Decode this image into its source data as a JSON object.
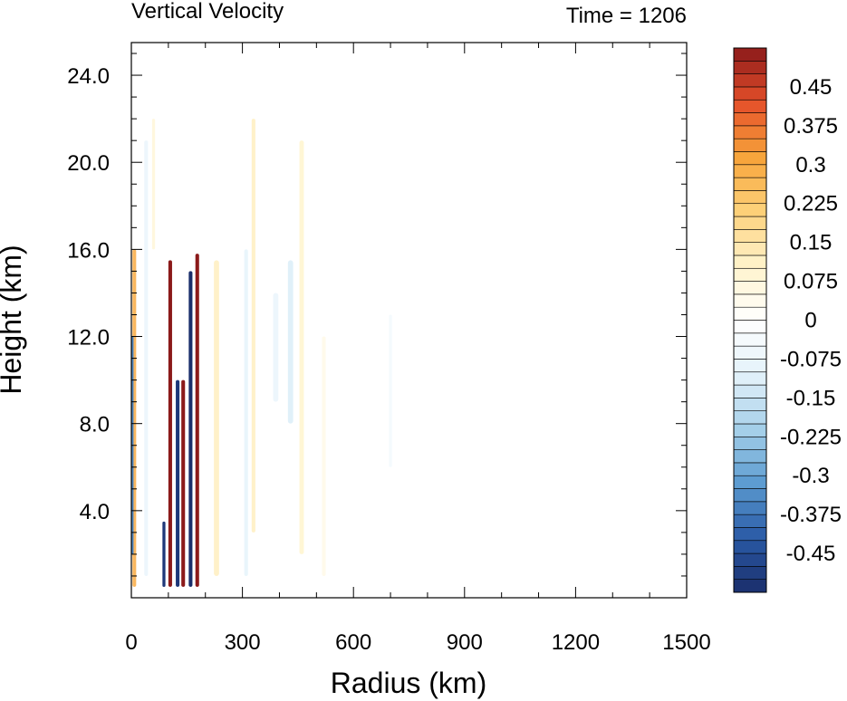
{
  "chart_data": {
    "type": "heatmap",
    "title_left": "Vertical Velocity",
    "title_right": "Time = 1206",
    "xlabel": "Radius (km)",
    "ylabel": "Height (km)",
    "xlim": [
      0,
      1500
    ],
    "ylim": [
      0,
      25.5
    ],
    "x_ticks": [
      {
        "value": 0,
        "label": "0"
      },
      {
        "value": 300,
        "label": "300"
      },
      {
        "value": 600,
        "label": "600"
      },
      {
        "value": 900,
        "label": "900"
      },
      {
        "value": 1200,
        "label": "1200"
      },
      {
        "value": 1500,
        "label": "1500"
      }
    ],
    "y_ticks": [
      {
        "value": 4,
        "label": "4.0"
      },
      {
        "value": 8,
        "label": "8.0"
      },
      {
        "value": 12,
        "label": "12.0"
      },
      {
        "value": 16,
        "label": "16.0"
      },
      {
        "value": 20,
        "label": "20.0"
      },
      {
        "value": 24,
        "label": "24.0"
      }
    ],
    "colorbar": {
      "levels": [
        -0.525,
        -0.5,
        -0.475,
        -0.45,
        -0.425,
        -0.4,
        -0.375,
        -0.35,
        -0.325,
        -0.3,
        -0.275,
        -0.25,
        -0.225,
        -0.2,
        -0.175,
        -0.15,
        -0.125,
        -0.1,
        -0.075,
        -0.05,
        -0.025,
        0,
        0.025,
        0.05,
        0.075,
        0.1,
        0.125,
        0.15,
        0.175,
        0.2,
        0.225,
        0.25,
        0.275,
        0.3,
        0.325,
        0.35,
        0.375,
        0.4,
        0.425,
        0.45,
        0.475,
        0.5,
        0.525
      ],
      "labels": [
        {
          "value": 0.45,
          "label": "0.45"
        },
        {
          "value": 0.375,
          "label": "0.375"
        },
        {
          "value": 0.3,
          "label": "0.3"
        },
        {
          "value": 0.225,
          "label": "0.225"
        },
        {
          "value": 0.15,
          "label": "0.15"
        },
        {
          "value": 0.075,
          "label": "0.075"
        },
        {
          "value": 0,
          "label": "0"
        },
        {
          "value": -0.075,
          "label": "-0.075"
        },
        {
          "value": -0.15,
          "label": "-0.15"
        },
        {
          "value": -0.225,
          "label": "-0.225"
        },
        {
          "value": -0.3,
          "label": "-0.3"
        },
        {
          "value": -0.375,
          "label": "-0.375"
        },
        {
          "value": -0.45,
          "label": "-0.45"
        }
      ],
      "color_stops": [
        "#1a2e6b",
        "#2a5aa6",
        "#5b9bd0",
        "#a6d0ea",
        "#e4f2fa",
        "#ffffff",
        "#fff3cc",
        "#fdd17a",
        "#f7a43a",
        "#e5502a",
        "#8b1a1a"
      ]
    },
    "features": [
      {
        "r": 178,
        "z0": 0.5,
        "z1": 15.8,
        "w": 10,
        "v": 0.55
      },
      {
        "r": 160,
        "z0": 0.5,
        "z1": 15.0,
        "w": 10,
        "v": -0.55
      },
      {
        "r": 140,
        "z0": 0.5,
        "z1": 10.0,
        "w": 10,
        "v": 0.55
      },
      {
        "r": 125,
        "z0": 0.5,
        "z1": 10.0,
        "w": 10,
        "v": -0.5
      },
      {
        "r": 105,
        "z0": 0.5,
        "z1": 15.5,
        "w": 10,
        "v": 0.55
      },
      {
        "r": 88,
        "z0": 0.5,
        "z1": 3.5,
        "w": 8,
        "v": -0.5
      },
      {
        "r": 8,
        "z0": 0.5,
        "z1": 16.0,
        "w": 10,
        "v": 0.3
      },
      {
        "r": 3,
        "z0": 2.0,
        "z1": 12.0,
        "w": 6,
        "v": -0.35
      },
      {
        "r": 230,
        "z0": 1.0,
        "z1": 15.5,
        "w": 14,
        "v": 0.12
      },
      {
        "r": 330,
        "z0": 3.0,
        "z1": 22.0,
        "w": 10,
        "v": 0.12
      },
      {
        "r": 310,
        "z0": 1.0,
        "z1": 16.0,
        "w": 10,
        "v": -0.1
      },
      {
        "r": 460,
        "z0": 2.0,
        "z1": 21.0,
        "w": 12,
        "v": 0.1
      },
      {
        "r": 430,
        "z0": 8.0,
        "z1": 15.5,
        "w": 14,
        "v": -0.12
      },
      {
        "r": 390,
        "z0": 9.0,
        "z1": 14.0,
        "w": 14,
        "v": -0.08
      },
      {
        "r": 520,
        "z0": 1.0,
        "z1": 12.0,
        "w": 10,
        "v": 0.05
      },
      {
        "r": 700,
        "z0": 6.0,
        "z1": 13.0,
        "w": 8,
        "v": -0.05
      },
      {
        "r": 40,
        "z0": 1.0,
        "z1": 21.0,
        "w": 10,
        "v": -0.08
      },
      {
        "r": 60,
        "z0": 16.0,
        "z1": 22.0,
        "w": 8,
        "v": 0.08
      }
    ]
  }
}
